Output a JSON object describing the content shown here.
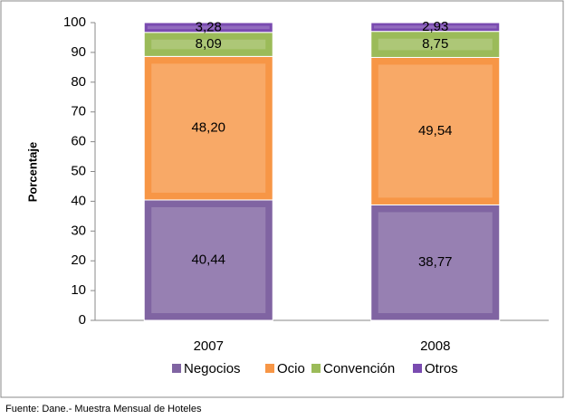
{
  "chart_data": {
    "type": "stacked_bar",
    "y_label": "Porcentaje",
    "categories": [
      "2007",
      "2008"
    ],
    "series": [
      {
        "name": "Negocios",
        "color": "#8064a2",
        "values": [
          40.44,
          38.77
        ],
        "value_labels": [
          "40,44",
          "38,77"
        ]
      },
      {
        "name": "Ocio",
        "color": "#f79646",
        "values": [
          48.2,
          49.54
        ],
        "value_labels": [
          "48,20",
          "49,54"
        ]
      },
      {
        "name": "Convención",
        "color": "#9bbb59",
        "values": [
          8.09,
          8.75
        ],
        "value_labels": [
          "8,09",
          "8,75"
        ]
      },
      {
        "name": "Otros",
        "color": "#7a4bb0",
        "values": [
          3.28,
          2.93
        ],
        "value_labels": [
          "3,28",
          "2,93"
        ]
      }
    ],
    "ylim": [
      0,
      100
    ],
    "yticks": [
      0,
      10,
      20,
      30,
      40,
      50,
      60,
      70,
      80,
      90,
      100
    ],
    "legend": "bottom",
    "source": "Fuente: Dane.- Muestra Mensual de Hoteles"
  }
}
